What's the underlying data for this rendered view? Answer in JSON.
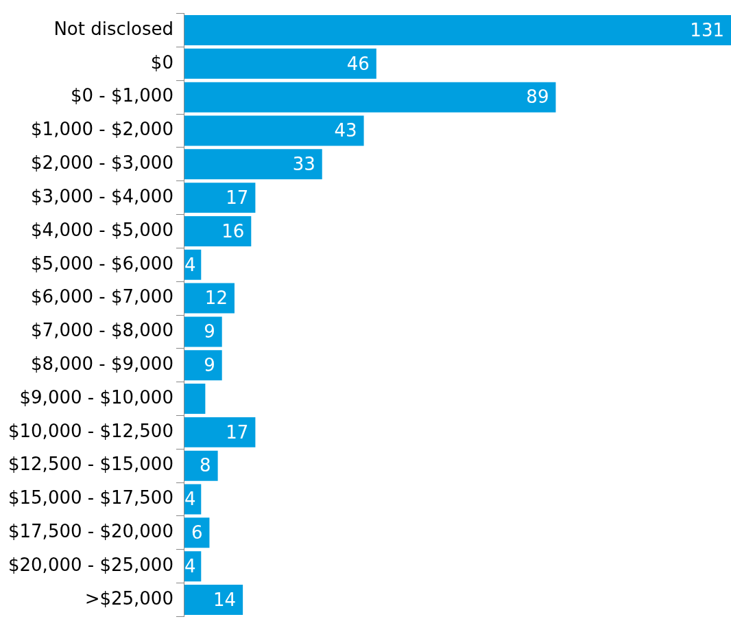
{
  "chart_data": {
    "type": "bar",
    "orientation": "horizontal",
    "color": "#009fe0",
    "categories": [
      "Not disclosed",
      "$0",
      "$0 - $1,000",
      "$1,000 - $2,000",
      "$2,000 - $3,000",
      "$3,000 - $4,000",
      "$4,000 - $5,000",
      "$5,000 - $6,000",
      "$6,000 - $7,000",
      "$7,000 - $8,000",
      "$8,000 - $9,000",
      "$9,000 - $10,000",
      "$10,000 - $12,500",
      "$12,500 - $15,000",
      "$15,000 - $17,500",
      "$17,500 - $20,000",
      "$20,000 - $25,000",
      ">$25,000"
    ],
    "values": [
      131,
      46,
      89,
      43,
      33,
      17,
      16,
      4,
      12,
      9,
      9,
      5,
      17,
      8,
      4,
      6,
      4,
      14
    ],
    "value_labels": [
      "131",
      "46",
      "89",
      "43",
      "33",
      "17",
      "16",
      "4",
      "12",
      "9",
      "9",
      null,
      "17",
      "8",
      "4",
      "6",
      "4",
      "14"
    ],
    "grid": false,
    "legend": false
  }
}
